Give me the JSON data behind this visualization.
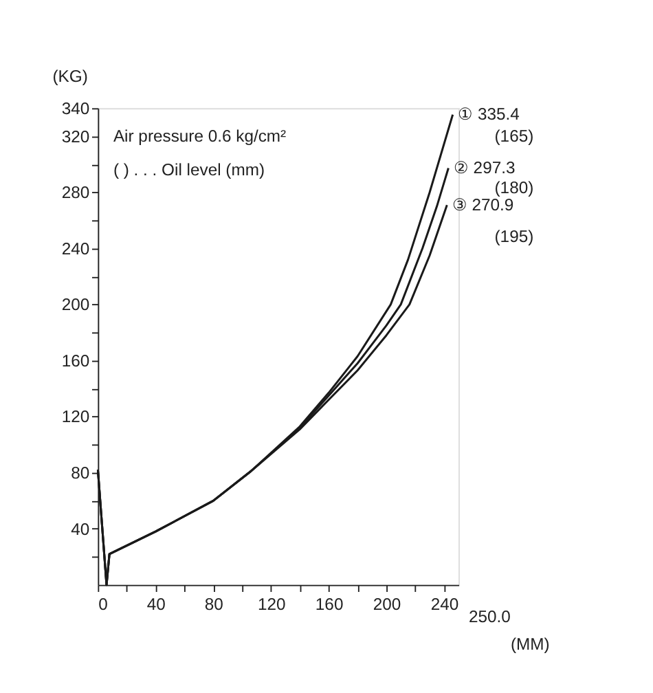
{
  "chart_data": {
    "type": "line",
    "xlabel": "(MM)",
    "ylabel": "(KG)",
    "xlim": [
      0,
      250
    ],
    "ylim": [
      0,
      340
    ],
    "xticks": [
      0,
      {
        "value": 20,
        "label": null
      },
      40,
      {
        "value": 60,
        "label": null
      },
      80,
      {
        "value": 100,
        "label": null
      },
      120,
      {
        "value": 140,
        "label": null
      },
      160,
      {
        "value": 180,
        "label": null
      },
      200,
      {
        "value": 220,
        "label": null
      },
      240
    ],
    "yticks": [
      {
        "value": 20,
        "label": null
      },
      40,
      {
        "value": 60,
        "label": null
      },
      80,
      {
        "value": 100,
        "label": null
      },
      120,
      {
        "value": 140,
        "label": null
      },
      160,
      {
        "value": 180,
        "label": null
      },
      200,
      {
        "value": 220,
        "label": null
      },
      240,
      {
        "value": 260,
        "label": null
      },
      280,
      {
        "value": 300,
        "label": null
      },
      320,
      340
    ],
    "series": [
      {
        "name": "① 335.4",
        "color": "#1a1a1a",
        "x": [
          0,
          6,
          8,
          40,
          80,
          106,
          140,
          160,
          180,
          203,
          215,
          230,
          246
        ],
        "values": [
          82,
          0,
          22,
          38,
          60,
          81,
          113,
          137,
          163,
          200,
          232,
          280,
          335.4
        ]
      },
      {
        "name": "② 297.3",
        "color": "#1a1a1a",
        "x": [
          0,
          6,
          8,
          40,
          80,
          106,
          140,
          160,
          180,
          200,
          210,
          225,
          235,
          243
        ],
        "values": [
          82,
          0,
          22,
          38,
          60,
          81,
          112,
          135,
          158,
          185,
          200,
          240,
          270,
          297.3
        ]
      },
      {
        "name": "③ 270.9",
        "color": "#1a1a1a",
        "x": [
          0,
          6,
          8,
          40,
          80,
          106,
          140,
          160,
          180,
          200,
          216,
          230,
          242
        ],
        "values": [
          82,
          0,
          22,
          38,
          60,
          81,
          111,
          132,
          153,
          178,
          200,
          235,
          270.9
        ]
      }
    ],
    "annotations": [
      "Air pressure  0.6 kg/cm²",
      "(            ) . . . Oil level (mm)",
      "250.0",
      "(165)",
      "(180)",
      "(195)"
    ],
    "line_style": "solid",
    "marker": "none",
    "grid": false,
    "legend": false
  }
}
